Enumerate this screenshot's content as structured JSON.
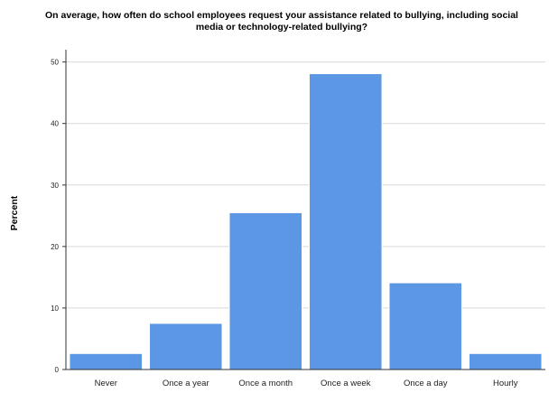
{
  "chart_data": {
    "type": "bar",
    "title": "On average, how often do school employees request your assistance related to bullying, including social media or technology-related bullying?",
    "title_lines": [
      "On average, how often do school employees request your assistance related to bullying, including social",
      "media or technology-related bullying?"
    ],
    "xlabel": "",
    "ylabel": "Percent",
    "categories": [
      "Never",
      "Once a year",
      "Once a month",
      "Once a week",
      "Once a day",
      "Hourly"
    ],
    "values": [
      2.6,
      7.5,
      25.5,
      48.1,
      14.1,
      2.6
    ],
    "ylim": [
      0,
      52
    ],
    "yticks": [
      0,
      10,
      20,
      30,
      40,
      50
    ],
    "grid": true,
    "bar_color": "#5b97e5"
  }
}
